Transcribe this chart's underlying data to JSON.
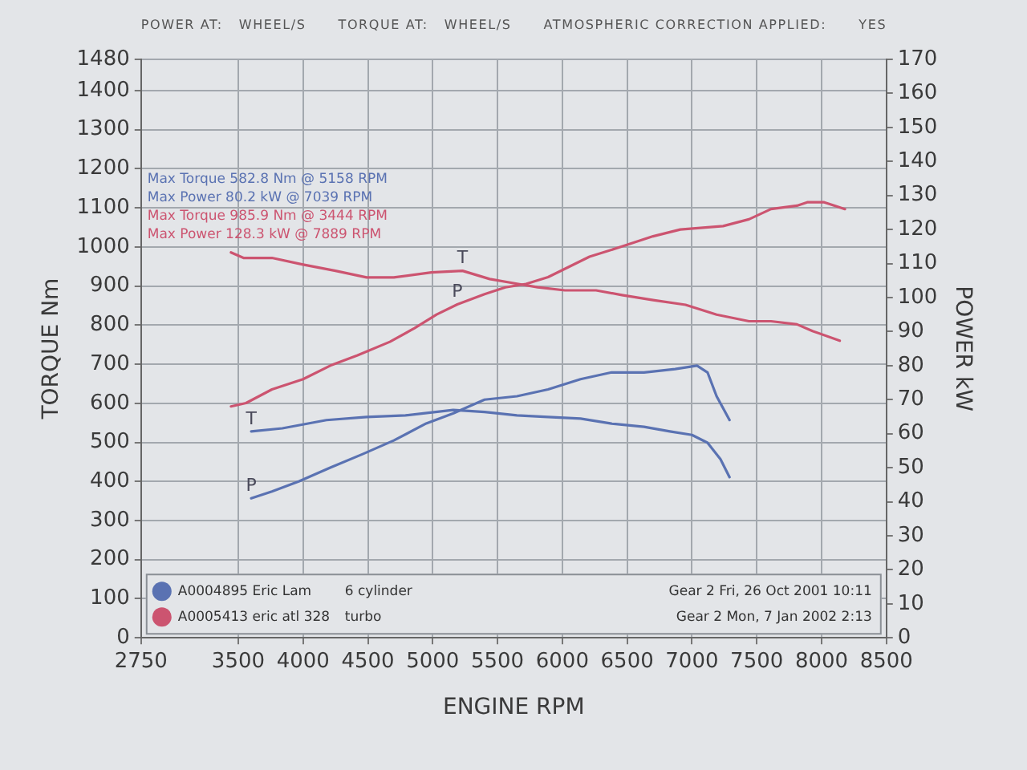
{
  "chart_data": {
    "type": "line",
    "xlabel": "ENGINE RPM",
    "ylabel": "TORQUE Nm",
    "y2label": "POWER kW",
    "xlim": [
      2750,
      8500
    ],
    "xticks": [
      2750,
      3500,
      4000,
      4500,
      5000,
      5500,
      6000,
      6500,
      7000,
      7500,
      8000,
      8500
    ],
    "ylim": [
      0,
      1480
    ],
    "yticks": [
      0,
      100,
      200,
      300,
      400,
      500,
      600,
      700,
      800,
      900,
      1000,
      1100,
      1200,
      1300,
      1400,
      1480
    ],
    "y2lim": [
      0,
      170
    ],
    "y2ticks": [
      0,
      10,
      20,
      30,
      40,
      50,
      60,
      70,
      80,
      90,
      100,
      110,
      120,
      130,
      140,
      150,
      160,
      170
    ],
    "grid": true,
    "legend": "bottom",
    "marker": "none",
    "line_style": "solid",
    "series": [
      {
        "name": "A0004895 Eric Lam",
        "color": "#5a72b2",
        "x": [
          3600,
          3840,
          4180,
          4490,
          4790,
          5158,
          5400,
          5650,
          5890,
          6140,
          6380,
          6630,
          6830,
          7000,
          7120,
          7220,
          7290
        ],
        "values": [
          528,
          536,
          557,
          565,
          569,
          583,
          578,
          569,
          565,
          561,
          548,
          540,
          528,
          519,
          499,
          457,
          411
        ]
      },
      {
        "color": "#5a72b2",
        "axis": "y2",
        "x": [
          3600,
          3760,
          3970,
          4210,
          4460,
          4700,
          4950,
          5160,
          5400,
          5650,
          5890,
          6140,
          6380,
          6630,
          6870,
          7039,
          7120,
          7190,
          7290
        ],
        "values": [
          41,
          43,
          46,
          50,
          54,
          58,
          63,
          66,
          70,
          71,
          73,
          76,
          78,
          78,
          79,
          80,
          78,
          71,
          64
        ]
      },
      {
        "name": "A0005413 eric atl 328",
        "color": "#cc5470",
        "x": [
          3444,
          3540,
          3760,
          4000,
          4250,
          4490,
          4700,
          4990,
          5230,
          5440,
          5650,
          5810,
          6020,
          6260,
          6460,
          6700,
          6950,
          7190,
          7440,
          7610,
          7810,
          7930,
          8140
        ],
        "values": [
          986,
          972,
          972,
          955,
          939,
          922,
          922,
          935,
          939,
          918,
          906,
          897,
          889,
          889,
          877,
          864,
          852,
          827,
          810,
          810,
          802,
          785,
          760
        ]
      },
      {
        "color": "#cc5470",
        "axis": "y2",
        "x": [
          3444,
          3560,
          3760,
          4000,
          4210,
          4420,
          4670,
          4860,
          5030,
          5190,
          5400,
          5560,
          5720,
          5890,
          6050,
          6210,
          6460,
          6700,
          6910,
          7240,
          7440,
          7610,
          7810,
          7889,
          8020,
          8180
        ],
        "values": [
          68,
          69,
          73,
          76,
          80,
          83,
          87,
          91,
          95,
          98,
          101,
          103,
          104,
          106,
          109,
          112,
          115,
          118,
          120,
          121,
          123,
          126,
          127,
          128,
          128,
          126
        ]
      }
    ],
    "annotations": [
      "POWER AT:   WHEEL/S      TORQUE AT:   WHEEL/S      ATMOSPHERIC CORRECTION APPLIED:      YES",
      "Max Torque 582.8 Nm @ 5158 RPM",
      "Max Power 80.2 kW @ 7039 RPM",
      "Max Torque 985.9 Nm @ 3444 RPM",
      "Max Power 128.3 kW @ 7889 RPM",
      "6 cylinder",
      "Gear 2 Fri, 26 Oct 2001 10:11",
      "turbo",
      "Gear 2 Mon, 7 Jan 2002 2:13",
      {
        "text": "T",
        "x": 3600,
        "y": 528
      },
      {
        "text": "P",
        "x": 3600,
        "y": 357
      },
      {
        "text": "T",
        "x": 5230,
        "y": 939
      },
      {
        "text": "P",
        "x": 5190,
        "y": 853
      }
    ]
  }
}
